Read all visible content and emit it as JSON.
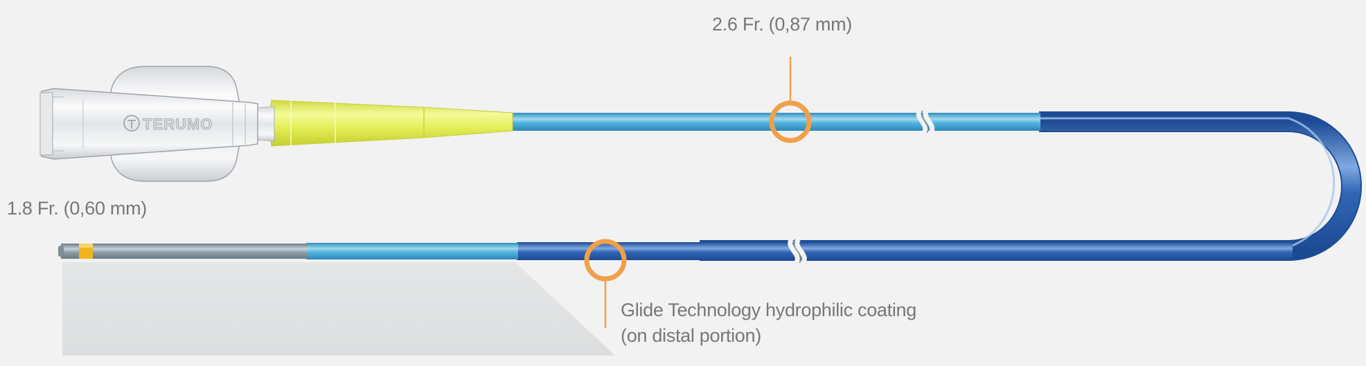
{
  "labels": {
    "proximal_diameter": "2.6 Fr. (0,87 mm)",
    "distal_diameter": "1.8 Fr. (0,60 mm)",
    "coating_line1": "Glide Technology hydrophilic coating",
    "coating_line2": "(on distal portion)"
  },
  "hub_brand": "TERUMO",
  "colors": {
    "background": "#f2f2f2",
    "callout": "#f0a04b",
    "shaft_light_blue": "#3aa3d0",
    "shaft_dark_blue": "#2457a6",
    "strain_relief_yellow": "#e4ee57",
    "tip_marker": "#f2b31c",
    "distal_tip_gray": "#8b9aa5",
    "label_text": "#777777"
  }
}
